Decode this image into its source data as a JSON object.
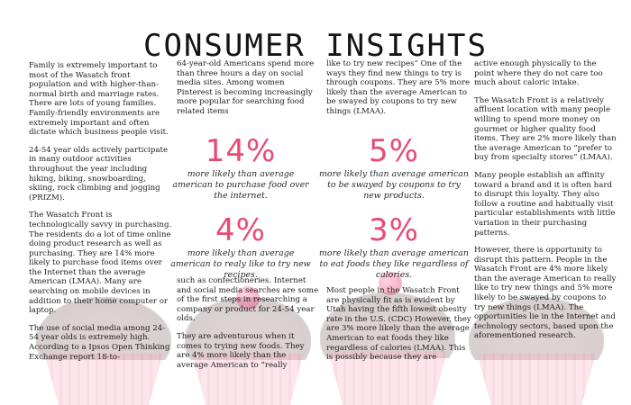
{
  "title": "CONSUMER INSIGHTS",
  "column1": {
    "p1": "Family is extremely important to most of the Wasatch front population and with higher-than-normal birth and marriage rates. There are lots of young families. Family-friendly environments are extremely important and often dictate which business people visit.",
    "p2": "24-54 year olds actively participate in many outdoor activities throughout the year including hiking, biking, snowboarding, skiing, rock climbing and jogging (PRIZM).",
    "p3": "The Wasatch Front is technologically savvy in purchasing. The residents do a lot of time online doing product research as well as purchasing. They are 14% more likely to purchase food items over the Internet than the average American (LMAA). Many are searching on mobile devices in addition to their home computer or laptop.",
    "p4": "The use of social media among 24-54 year olds is extremely high. According to a Ipsos Open Thinking Exchange report 18-to-"
  },
  "column2": {
    "p1": "64-year-old Americans spend more than three hours a day on social media sites. Among women Pinterest is becoming increasingly more popular for searching food related items",
    "p2": "such as confectioneries. Internet and social media searches are some of the first steps in researching a company or product for 24-54 year olds.",
    "p3": "They are adventurous when it comes to trying new foods. They are 4% more likely than the average American to “really"
  },
  "column3": {
    "p1": "like to try new recipes” One of the ways they find new things to try is through coupons. They are 5% more likely than the average American to be swayed by coupons to try new things (LMAA).",
    "p2": "Most people in the Wasatch Front are physically fit as is evident by Utah having the fifth lowest obesity rate in the U.S. (CDC) However, they are 3% more likely than the average American to eat foods they like regardless of calories (LMAA). This is possibly because they are"
  },
  "column4": {
    "p1": "active enough physically to the point where they do not care too much about caloric intake.",
    "p2": "The Wasatch Front is a relatively affluent location with many people willing to spend more money on gourmet or higher quality food items. They are 2% more likely than the average American to “prefer to buy from specialty stores” (LMAA).",
    "p3": "Many people establish an affinity toward a brand and it is often hard to disrupt this loyalty. They also follow a routine and habitually visit particular establishments with little variation in their purchasing patterns.",
    "p4": "However, there is opportunity to disrupt this pattern. People in the Wasatch Front are 4% more likely than the average American to really like to try new things and 5% more likely to be swayed by coupons to try new things (LMAA). The opportunities lie in the Internet and technology sectors, based upon the aforementioned research."
  },
  "stats": [
    {
      "value": "14%",
      "text": "more likely than average american to purchase food over the internet."
    },
    {
      "value": "5%",
      "text": "more likely than average american to be swayed by coupons to try new products."
    },
    {
      "value": "4%",
      "text": "more likely than average american to realy like to try new recipes."
    },
    {
      "value": "3%",
      "text": "more likely than average american to eat foods they like regardless of calories."
    }
  ],
  "colors": {
    "accent": "#e84a73",
    "text": "#1d1d1d"
  }
}
